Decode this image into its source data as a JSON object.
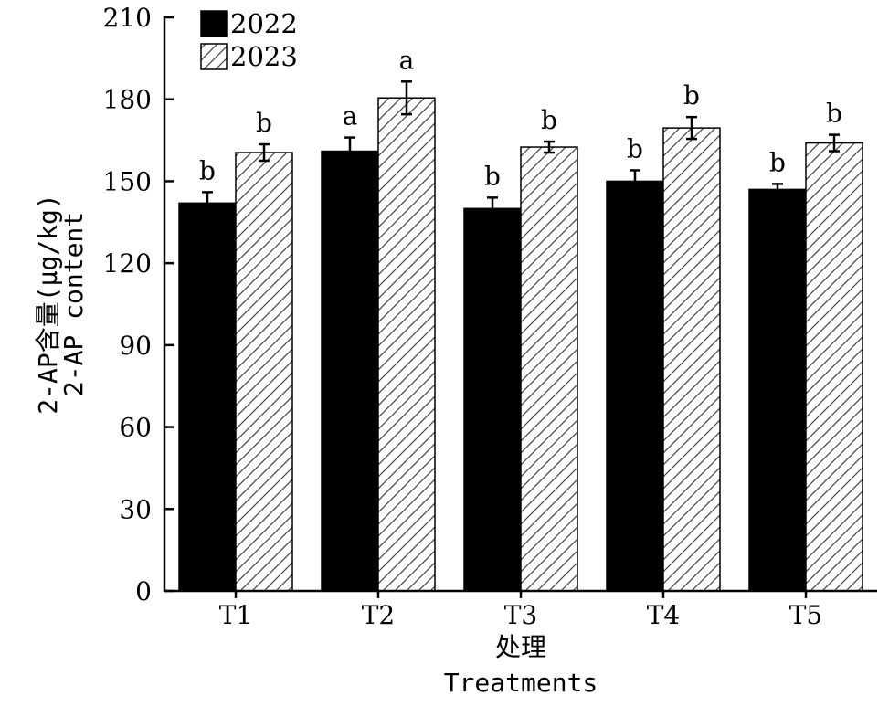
{
  "chart_data": {
    "type": "bar",
    "categories": [
      "T1",
      "T2",
      "T3",
      "T4",
      "T5"
    ],
    "series": [
      {
        "name": "2022",
        "fill": "#000000",
        "pattern": "solid",
        "values": [
          142,
          161,
          140,
          150,
          147
        ],
        "errors": [
          4,
          5,
          4,
          4,
          2
        ],
        "significance": [
          "b",
          "a",
          "b",
          "b",
          "b"
        ]
      },
      {
        "name": "2023",
        "fill": "#ffffff",
        "pattern": "diagonal-hatch",
        "values": [
          160.5,
          180.5,
          162.5,
          169.5,
          164
        ],
        "errors": [
          3,
          6,
          2,
          4,
          3
        ],
        "significance": [
          "b",
          "a",
          "b",
          "b",
          "b"
        ]
      }
    ],
    "ylim": [
      0,
      210
    ],
    "yticks": [
      "0",
      "30",
      "60",
      "90",
      "120",
      "150",
      "180",
      "210"
    ],
    "ylabel_line1": "2-AP含量(μg/kg)",
    "ylabel_line2": "2-AP content",
    "xlabel_line1": "处理",
    "xlabel_line2": "Treatments",
    "legend_position": "top-left",
    "grid": false
  }
}
